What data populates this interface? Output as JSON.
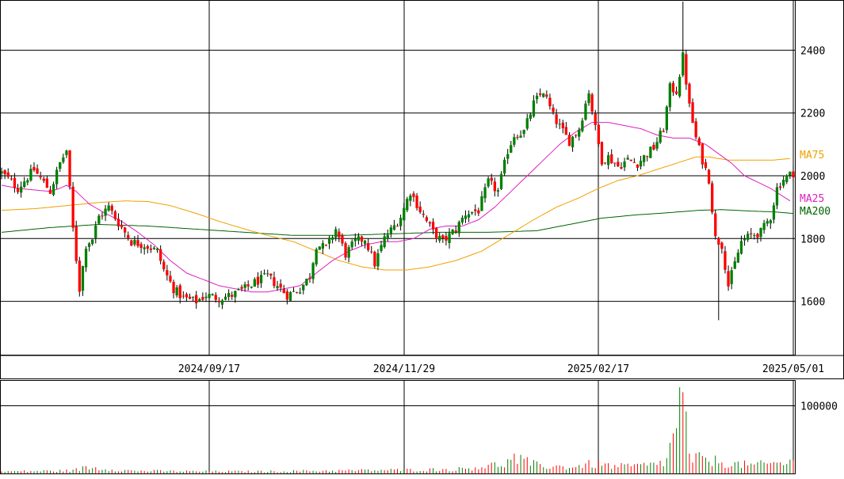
{
  "chart_data": [
    {
      "type": "candlestick",
      "title": "",
      "xlabel": "",
      "ylabel": "",
      "ylim": [
        1430,
        2560
      ],
      "yticks": [
        "1600",
        "1800",
        "2000",
        "2200",
        "2400"
      ],
      "ytick_values": [
        1600,
        1800,
        2000,
        2200,
        2400
      ],
      "xtick_labels": [
        "2024/09/17",
        "2024/11/29",
        "2025/02/17",
        "2025/05/01"
      ],
      "xtick_index": [
        64,
        124,
        184,
        244
      ],
      "grid": true,
      "series_labels": {
        "ma75": "MA75",
        "ma25": "MA25",
        "ma200": "MA200"
      },
      "colors": {
        "up": "#008000",
        "down": "#ff0000",
        "wick": "#000000",
        "ma25": "#e020c0",
        "ma75": "#f0a000",
        "ma200": "#006400",
        "grid": "#000000"
      },
      "ohlc_anchors": [
        [
          0,
          2010
        ],
        [
          5,
          1960
        ],
        [
          10,
          2020
        ],
        [
          15,
          1950
        ],
        [
          18,
          2040
        ],
        [
          20,
          2080
        ],
        [
          22,
          1830
        ],
        [
          24,
          1640
        ],
        [
          26,
          1780
        ],
        [
          28,
          1800
        ],
        [
          30,
          1870
        ],
        [
          33,
          1900
        ],
        [
          36,
          1850
        ],
        [
          40,
          1790
        ],
        [
          44,
          1780
        ],
        [
          48,
          1760
        ],
        [
          50,
          1700
        ],
        [
          53,
          1640
        ],
        [
          56,
          1610
        ],
        [
          60,
          1600
        ],
        [
          63,
          1620
        ],
        [
          67,
          1610
        ],
        [
          71,
          1620
        ],
        [
          75,
          1640
        ],
        [
          78,
          1660
        ],
        [
          82,
          1680
        ],
        [
          85,
          1650
        ],
        [
          88,
          1620
        ],
        [
          92,
          1640
        ],
        [
          95,
          1680
        ],
        [
          97,
          1780
        ],
        [
          100,
          1770
        ],
        [
          103,
          1830
        ],
        [
          106,
          1750
        ],
        [
          109,
          1790
        ],
        [
          112,
          1800
        ],
        [
          115,
          1720
        ],
        [
          118,
          1800
        ],
        [
          121,
          1840
        ],
        [
          123,
          1870
        ],
        [
          126,
          1950
        ],
        [
          129,
          1890
        ],
        [
          133,
          1820
        ],
        [
          136,
          1790
        ],
        [
          140,
          1830
        ],
        [
          143,
          1880
        ],
        [
          147,
          1890
        ],
        [
          150,
          1980
        ],
        [
          153,
          1950
        ],
        [
          156,
          2080
        ],
        [
          158,
          2130
        ],
        [
          161,
          2140
        ],
        [
          164,
          2230
        ],
        [
          167,
          2270
        ],
        [
          170,
          2190
        ],
        [
          173,
          2140
        ],
        [
          175,
          2110
        ],
        [
          178,
          2150
        ],
        [
          181,
          2270
        ],
        [
          183,
          2150
        ],
        [
          185,
          2050
        ],
        [
          187,
          2060
        ],
        [
          190,
          2030
        ],
        [
          193,
          2050
        ],
        [
          196,
          2040
        ],
        [
          198,
          2060
        ],
        [
          201,
          2090
        ],
        [
          204,
          2150
        ],
        [
          206,
          2280
        ],
        [
          208,
          2270
        ],
        [
          210,
          2380
        ],
        [
          212,
          2220
        ],
        [
          214,
          2120
        ],
        [
          216,
          2050
        ],
        [
          218,
          1990
        ],
        [
          220,
          1800
        ],
        [
          222,
          1780
        ],
        [
          224,
          1650
        ],
        [
          226,
          1720
        ],
        [
          228,
          1790
        ],
        [
          231,
          1810
        ],
        [
          234,
          1820
        ],
        [
          237,
          1870
        ],
        [
          239,
          1960
        ],
        [
          241,
          1990
        ],
        [
          244,
          2010
        ]
      ],
      "ma25_anchors": [
        [
          0,
          1970
        ],
        [
          5,
          1960
        ],
        [
          10,
          1955
        ],
        [
          15,
          1950
        ],
        [
          18,
          1960
        ],
        [
          20,
          1970
        ],
        [
          23,
          1950
        ],
        [
          27,
          1910
        ],
        [
          32,
          1880
        ],
        [
          37,
          1855
        ],
        [
          42,
          1820
        ],
        [
          47,
          1780
        ],
        [
          52,
          1730
        ],
        [
          57,
          1690
        ],
        [
          62,
          1670
        ],
        [
          67,
          1650
        ],
        [
          72,
          1640
        ],
        [
          77,
          1630
        ],
        [
          82,
          1630
        ],
        [
          87,
          1640
        ],
        [
          92,
          1650
        ],
        [
          97,
          1690
        ],
        [
          102,
          1730
        ],
        [
          107,
          1760
        ],
        [
          112,
          1780
        ],
        [
          117,
          1790
        ],
        [
          122,
          1790
        ],
        [
          127,
          1800
        ],
        [
          132,
          1830
        ],
        [
          137,
          1840
        ],
        [
          142,
          1840
        ],
        [
          147,
          1860
        ],
        [
          152,
          1900
        ],
        [
          157,
          1950
        ],
        [
          162,
          2000
        ],
        [
          167,
          2050
        ],
        [
          172,
          2100
        ],
        [
          177,
          2140
        ],
        [
          182,
          2170
        ],
        [
          187,
          2170
        ],
        [
          192,
          2160
        ],
        [
          197,
          2150
        ],
        [
          202,
          2130
        ],
        [
          207,
          2120
        ],
        [
          212,
          2120
        ],
        [
          217,
          2100
        ],
        [
          221,
          2070
        ],
        [
          225,
          2040
        ],
        [
          229,
          2000
        ],
        [
          233,
          1980
        ],
        [
          237,
          1960
        ],
        [
          240,
          1940
        ],
        [
          243,
          1920
        ]
      ],
      "ma75_anchors": [
        [
          0,
          1890
        ],
        [
          10,
          1895
        ],
        [
          20,
          1905
        ],
        [
          30,
          1915
        ],
        [
          38,
          1920
        ],
        [
          45,
          1918
        ],
        [
          52,
          1905
        ],
        [
          60,
          1880
        ],
        [
          67,
          1855
        ],
        [
          75,
          1830
        ],
        [
          82,
          1810
        ],
        [
          90,
          1790
        ],
        [
          97,
          1760
        ],
        [
          104,
          1730
        ],
        [
          111,
          1710
        ],
        [
          118,
          1700
        ],
        [
          125,
          1700
        ],
        [
          132,
          1710
        ],
        [
          140,
          1730
        ],
        [
          148,
          1760
        ],
        [
          156,
          1810
        ],
        [
          164,
          1860
        ],
        [
          171,
          1900
        ],
        [
          178,
          1930
        ],
        [
          184,
          1960
        ],
        [
          190,
          1985
        ],
        [
          196,
          2000
        ],
        [
          202,
          2020
        ],
        [
          208,
          2040
        ],
        [
          214,
          2060
        ],
        [
          218,
          2060
        ],
        [
          224,
          2050
        ],
        [
          231,
          2050
        ],
        [
          238,
          2050
        ],
        [
          243,
          2055
        ]
      ],
      "ma200_anchors": [
        [
          0,
          1820
        ],
        [
          15,
          1835
        ],
        [
          30,
          1845
        ],
        [
          45,
          1840
        ],
        [
          60,
          1830
        ],
        [
          75,
          1820
        ],
        [
          90,
          1810
        ],
        [
          105,
          1810
        ],
        [
          120,
          1815
        ],
        [
          135,
          1820
        ],
        [
          150,
          1820
        ],
        [
          165,
          1825
        ],
        [
          175,
          1845
        ],
        [
          185,
          1865
        ],
        [
          195,
          1875
        ],
        [
          205,
          1882
        ],
        [
          215,
          1890
        ],
        [
          222,
          1892
        ],
        [
          230,
          1888
        ],
        [
          238,
          1885
        ],
        [
          244,
          1880
        ]
      ],
      "ylabels_ma": {
        "ma75_at": 2060,
        "ma25_at": 1922,
        "ma200_at": 1882
      },
      "n_bars": 245,
      "spikes": [
        {
          "index": 21,
          "high": 2070
        },
        {
          "index": 210,
          "high": 2555
        },
        {
          "index": 221,
          "low": 1540
        }
      ]
    },
    {
      "type": "bar",
      "title": "",
      "xlabel": "",
      "ylabel": "",
      "ylim": [
        0,
        138000
      ],
      "yticks": [
        "100000"
      ],
      "ytick_values": [
        100000
      ],
      "grid": true,
      "volume_anchors": [
        [
          0,
          3000
        ],
        [
          20,
          4000
        ],
        [
          24,
          6000
        ],
        [
          26,
          9000
        ],
        [
          40,
          4000
        ],
        [
          60,
          3000
        ],
        [
          80,
          3000
        ],
        [
          100,
          4000
        ],
        [
          120,
          5000
        ],
        [
          140,
          6000
        ],
        [
          155,
          14000
        ],
        [
          158,
          22000
        ],
        [
          165,
          12000
        ],
        [
          175,
          9000
        ],
        [
          182,
          14000
        ],
        [
          190,
          10000
        ],
        [
          200,
          12000
        ],
        [
          205,
          18000
        ],
        [
          210,
          120000
        ],
        [
          212,
          22000
        ],
        [
          218,
          20000
        ],
        [
          225,
          14000
        ],
        [
          232,
          12000
        ],
        [
          238,
          15000
        ],
        [
          244,
          16000
        ]
      ]
    }
  ]
}
